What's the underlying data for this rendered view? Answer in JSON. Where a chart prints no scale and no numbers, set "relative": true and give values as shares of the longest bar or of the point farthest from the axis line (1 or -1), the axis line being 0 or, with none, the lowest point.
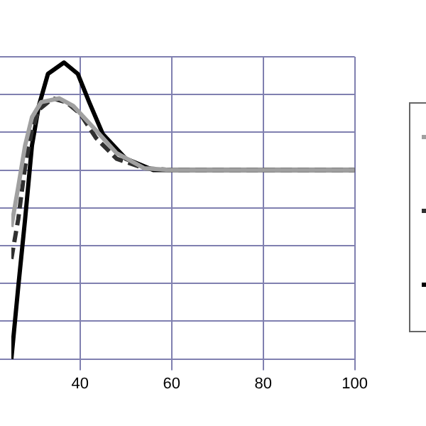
{
  "chart_data": {
    "type": "line",
    "relative": true,
    "xlim": [
      25,
      100
    ],
    "xticks": [
      40,
      60,
      80,
      100
    ],
    "grid": true,
    "marker": "none",
    "series": [
      {
        "color": "#a0a0a0",
        "line_style": "solid",
        "x": [
          25,
          26.5,
          28,
          29.5,
          31.5,
          35.5,
          38.5,
          43.5,
          48,
          54,
          60,
          100
        ],
        "values": [
          -0.3,
          -0.09,
          0.13,
          0.28,
          0.36,
          0.38,
          0.34,
          0.21,
          0.09,
          0.01,
          0,
          0
        ]
      },
      {
        "color": "#303030",
        "line_style": "dashed",
        "x": [
          25,
          26.5,
          28,
          29.5,
          31,
          34,
          37,
          40,
          43.5,
          48,
          54,
          60,
          100
        ],
        "values": [
          -0.47,
          -0.26,
          0.02,
          0.21,
          0.32,
          0.38,
          0.36,
          0.3,
          0.17,
          0.06,
          0.01,
          0,
          0
        ]
      },
      {
        "color": "#000000",
        "line_style": "solid",
        "x": [
          25,
          26.5,
          28,
          29.5,
          31,
          33,
          36.5,
          39.5,
          42,
          45,
          50,
          56,
          100
        ],
        "values": [
          -1,
          -0.62,
          -0.26,
          0.13,
          0.34,
          0.51,
          0.57,
          0.51,
          0.36,
          0.19,
          0.06,
          0,
          0
        ]
      }
    ]
  }
}
